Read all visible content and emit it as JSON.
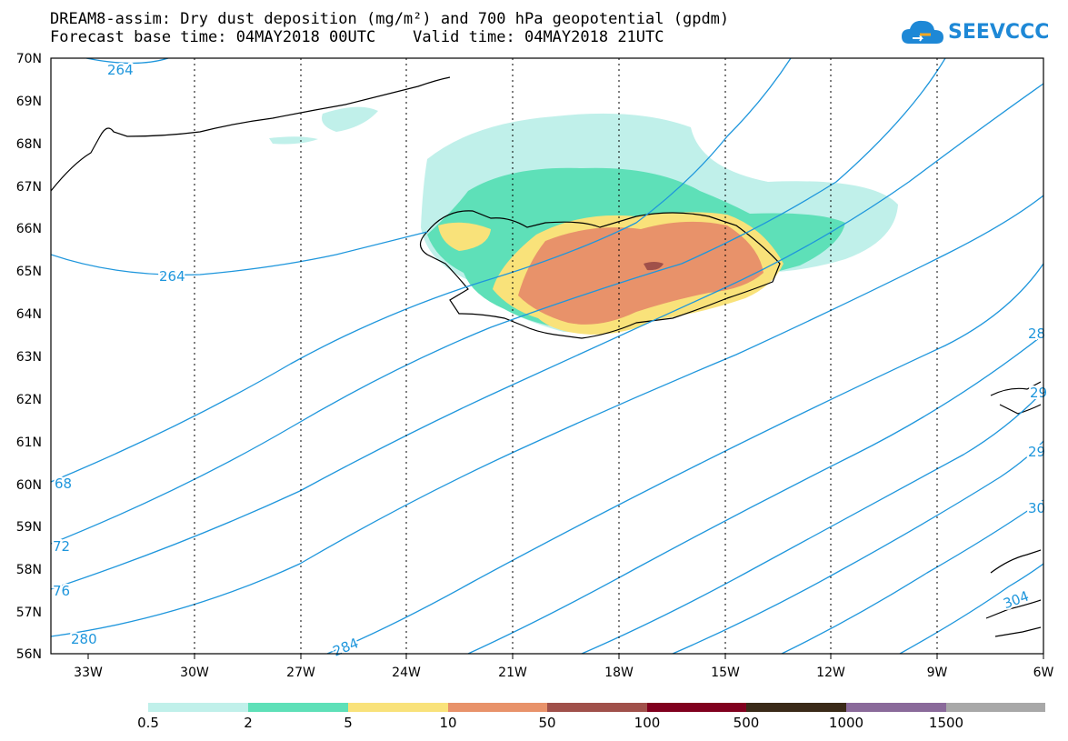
{
  "title": {
    "line1": "DREAM8-assim: Dry dust deposition (mg/m²) and 700 hPa geopotential (gpdm)",
    "line2": "Forecast base time: 04MAY2018 00UTC    Valid time: 04MAY2018 21UTC"
  },
  "logo": {
    "text": "SEEVCCC",
    "icon": "cloud-icon"
  },
  "map": {
    "lat_labels": [
      "70N",
      "69N",
      "68N",
      "67N",
      "66N",
      "65N",
      "64N",
      "63N",
      "62N",
      "61N",
      "60N",
      "59N",
      "58N",
      "57N",
      "56N"
    ],
    "lon_labels": [
      "33W",
      "30W",
      "27W",
      "24W",
      "21W",
      "18W",
      "15W",
      "12W",
      "9W",
      "6W"
    ],
    "contour_labels": [
      "264",
      "264",
      "68",
      "72",
      "76",
      "280",
      "284",
      "28",
      "29",
      "29",
      "30",
      "304"
    ],
    "colors": {
      "contour": "#1e96dc",
      "coast": "#000000"
    }
  },
  "legend": {
    "labels": [
      "0.5",
      "2",
      "5",
      "10",
      "50",
      "100",
      "500",
      "1000",
      "1500"
    ],
    "colors": [
      "#c0f0ea",
      "#5ee0b8",
      "#f9e27a",
      "#e8926a",
      "#a0504a",
      "#80001e",
      "#3a2a18",
      "#8a6a9a",
      "#a8a8a8"
    ]
  }
}
